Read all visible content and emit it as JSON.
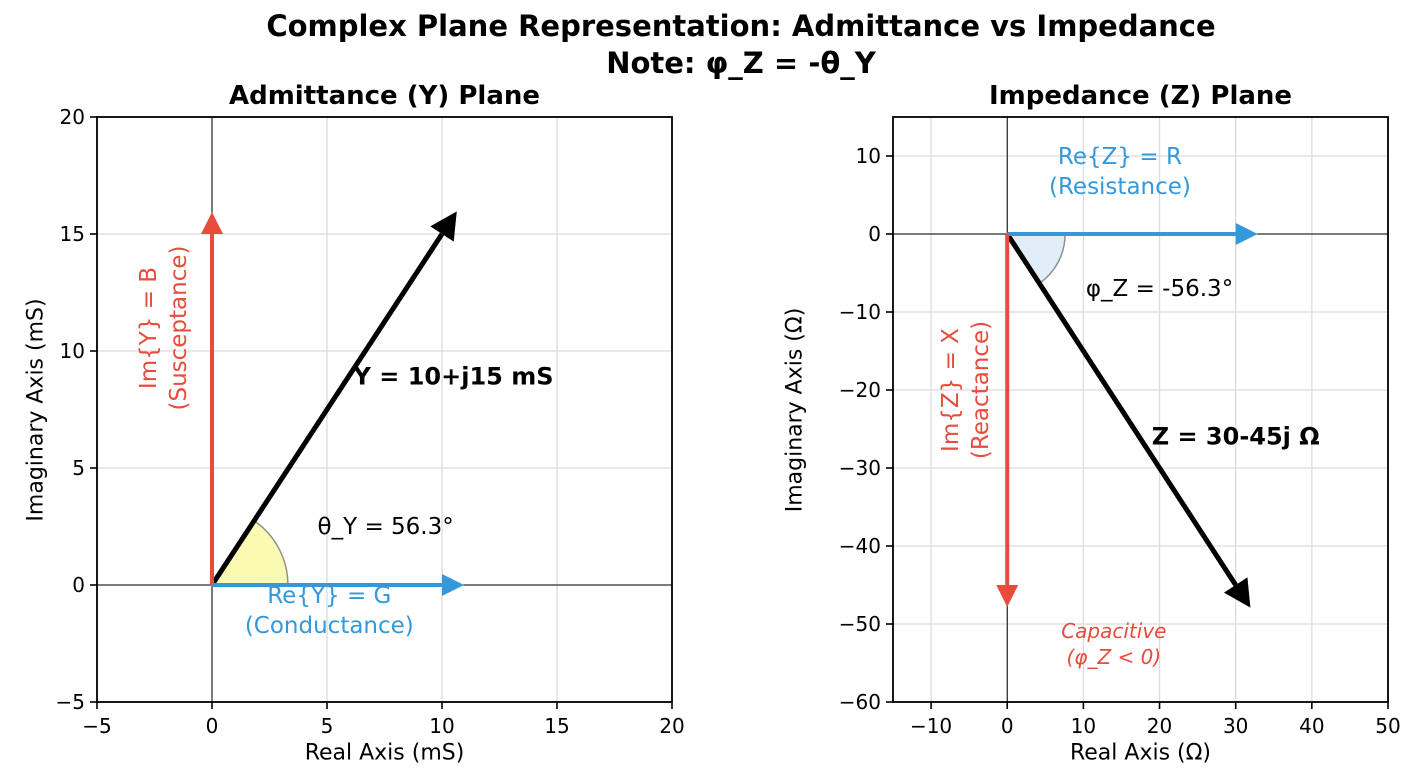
{
  "figure": {
    "title": "Complex Plane Representation: Admittance vs Impedance",
    "subtitle": "Note: φ_Z = -θ_Y",
    "background": "#ffffff"
  },
  "colors": {
    "vector_black": "#000000",
    "real_part_blue": "#3498db",
    "imag_part_red": "#e74c3c",
    "grid_gray": "#dcdcdc",
    "spine_black": "#000000",
    "wedge_edge_gray": "#8f8f8f",
    "admittance_wedge_fill": "#f9f9a8",
    "impedance_wedge_fill": "#ddedf6"
  },
  "chart_data": {
    "type": "scatter",
    "subtype": "complex-plane-vector-diagram",
    "plots": [
      {
        "id": "admittance-plane",
        "title": "Admittance (Y) Plane",
        "xlabel": "Real Axis (mS)",
        "ylabel": "Imaginary Axis (mS)",
        "xlim": [
          -5,
          20
        ],
        "ylim": [
          -5,
          20
        ],
        "xticks": [
          -5,
          0,
          5,
          10,
          15,
          20
        ],
        "yticks": [
          -5,
          0,
          5,
          10,
          15,
          20
        ],
        "grid": true,
        "zero_lines": true,
        "vectors": [
          {
            "name": "admittance-vector",
            "from": [
              0,
              0
            ],
            "to": [
              10,
              15
            ],
            "color": "#000000",
            "width": 5,
            "label": "Y = 10+j15 mS",
            "label_pos": [
              10.5,
              8.9
            ],
            "label_style": "bold-black"
          },
          {
            "name": "susceptance-vector",
            "from": [
              0,
              0
            ],
            "to": [
              0,
              15
            ],
            "color": "#e74c3c",
            "width": 4
          },
          {
            "name": "conductance-vector",
            "from": [
              0,
              0
            ],
            "to": [
              10,
              0
            ],
            "color": "#3498db",
            "width": 4
          }
        ],
        "wedge": {
          "name": "theta-y-angle-wedge",
          "center": [
            0,
            0
          ],
          "radius": 3.3,
          "theta1": 0,
          "theta2": 56.3,
          "fill": "#f9f9a8",
          "edge": "#8f8f8f",
          "label": "θ_Y = 56.3°",
          "label_pos": [
            7.55,
            2.45
          ]
        },
        "annotations": [
          {
            "name": "susceptance-axis-label",
            "lines": [
              "Im{Y} = B",
              "(Susceptance)"
            ],
            "pos": [
              -2.05,
              11.0
            ],
            "color": "#e74c3c",
            "rotate": true,
            "italic": false
          },
          {
            "name": "conductance-axis-label",
            "lines": [
              "Re{Y} = G",
              "(Conductance)"
            ],
            "pos": [
              5.1,
              -1.15
            ],
            "color": "#3498db",
            "rotate": false,
            "italic": false
          }
        ]
      },
      {
        "id": "impedance-plane",
        "title": "Impedance (Z) Plane",
        "xlabel": "Real Axis (Ω)",
        "ylabel": "Imaginary Axis (Ω)",
        "xlim": [
          -15,
          50
        ],
        "ylim": [
          -60,
          15
        ],
        "xticks": [
          -10,
          0,
          10,
          20,
          30,
          40,
          50
        ],
        "yticks": [
          10,
          0,
          -10,
          -20,
          -30,
          -40,
          -50,
          -60
        ],
        "grid": true,
        "zero_lines": true,
        "vectors": [
          {
            "name": "impedance-vector",
            "from": [
              0,
              0
            ],
            "to": [
              30,
              -45
            ],
            "color": "#000000",
            "width": 5,
            "label": "Z = 30-45j Ω",
            "label_pos": [
              30.0,
              -26.0
            ],
            "label_style": "bold-black"
          },
          {
            "name": "resistance-vector",
            "from": [
              0,
              0
            ],
            "to": [
              30,
              0
            ],
            "color": "#3498db",
            "width": 4
          },
          {
            "name": "reactance-vector",
            "from": [
              0,
              0
            ],
            "to": [
              0,
              -45
            ],
            "color": "#e74c3c",
            "width": 4
          }
        ],
        "wedge": {
          "name": "phi-z-angle-wedge",
          "center": [
            0,
            0
          ],
          "radius": 7.6,
          "theta1": -56.3,
          "theta2": 0,
          "fill": "#ddedf6",
          "edge": "#8f8f8f",
          "label": "φ_Z = -56.3°",
          "label_pos": [
            20.0,
            -7.2
          ]
        },
        "annotations": [
          {
            "name": "reactance-axis-label",
            "lines": [
              "Im{Z} = X",
              "(Reactance)"
            ],
            "pos": [
              -5.3,
              -20.0
            ],
            "color": "#e74c3c",
            "rotate": true,
            "italic": false
          },
          {
            "name": "resistance-axis-label",
            "lines": [
              "Re{Z} = R",
              "(Resistance)"
            ],
            "pos": [
              14.8,
              7.8
            ],
            "color": "#3498db",
            "rotate": false,
            "italic": false
          },
          {
            "name": "capacitive-region-label",
            "lines": [
              "Capacitive",
              "(φ_Z < 0)"
            ],
            "pos": [
              14.0,
              -52.5
            ],
            "color": "#e74c3c",
            "rotate": false,
            "italic": true
          }
        ]
      }
    ]
  }
}
